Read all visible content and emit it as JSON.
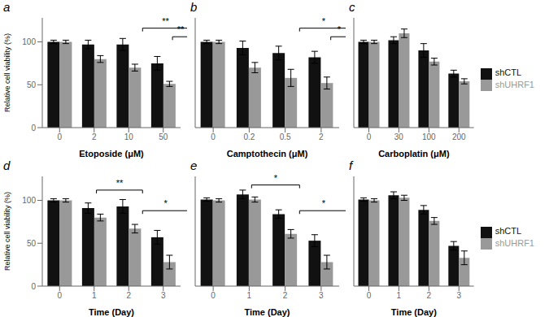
{
  "chart_data": [
    {
      "type": "bar",
      "title": "a",
      "xlabel": "Etoposide (μM)",
      "ylabel": "Relative cell viability (%)",
      "categories": [
        "0",
        "2",
        "10",
        "50"
      ],
      "series": [
        {
          "name": "shCTL",
          "color": "#111111",
          "values": [
            100,
            97,
            97,
            75
          ],
          "errors": [
            2,
            5,
            7,
            8
          ]
        },
        {
          "name": "shUHRF1",
          "color": "#999999",
          "values": [
            100,
            80,
            70,
            51
          ],
          "errors": [
            2,
            4,
            4,
            3
          ]
        }
      ],
      "ylim": [
        0,
        128
      ],
      "yticks": [
        0,
        50,
        100
      ],
      "grid": false,
      "annotations": [
        {
          "text": "**",
          "y": 116,
          "from": {
            "category": "10",
            "series": "shUHRF1"
          },
          "to": {
            "category": "50",
            "series": "shUHRF1"
          }
        },
        {
          "text": "**",
          "y": 106,
          "from": {
            "category": "50",
            "series": "shCTL"
          },
          "to": {
            "category": "50",
            "series": "shUHRF1"
          }
        }
      ]
    },
    {
      "type": "bar",
      "title": "b",
      "xlabel": "Camptothecin (μM)",
      "categories": [
        "0",
        "0.2",
        "0.5",
        "2"
      ],
      "series": [
        {
          "name": "shCTL",
          "color": "#111111",
          "values": [
            100,
            93,
            87,
            82
          ],
          "errors": [
            2,
            8,
            8,
            7
          ]
        },
        {
          "name": "shUHRF1",
          "color": "#999999",
          "values": [
            100,
            70,
            58,
            52
          ],
          "errors": [
            2,
            6,
            10,
            7
          ]
        }
      ],
      "ylim": [
        0,
        128
      ],
      "yticks": [
        0,
        50,
        100
      ],
      "grid": false,
      "tick_labels": "x",
      "annotations": [
        {
          "text": "*",
          "y": 116,
          "from": {
            "category": "0.5",
            "series": "shUHRF1"
          },
          "to": {
            "category": "2",
            "series": "shUHRF1"
          }
        },
        {
          "text": "*",
          "y": 106,
          "from": {
            "category": "2",
            "series": "shCTL"
          },
          "to": {
            "category": "2",
            "series": "shUHRF1"
          }
        }
      ]
    },
    {
      "type": "bar",
      "title": "c",
      "xlabel": "Carboplatin (μM)",
      "categories": [
        "0",
        "30",
        "100",
        "200"
      ],
      "series": [
        {
          "name": "shCTL",
          "color": "#111111",
          "values": [
            100,
            102,
            90,
            63
          ],
          "errors": [
            2,
            4,
            8,
            4
          ]
        },
        {
          "name": "shUHRF1",
          "color": "#999999",
          "values": [
            100,
            110,
            77,
            54
          ],
          "errors": [
            2,
            5,
            4,
            3
          ]
        }
      ],
      "ylim": [
        0,
        128
      ],
      "yticks": [
        0,
        50,
        100
      ],
      "grid": false,
      "tick_labels": "x",
      "legend": "right"
    },
    {
      "type": "bar",
      "title": "d",
      "xlabel": "Time (Day)",
      "ylabel": "Relative cell viability (%)",
      "categories": [
        "0",
        "1",
        "2",
        "3"
      ],
      "series": [
        {
          "name": "shCTL",
          "color": "#111111",
          "values": [
            100,
            91,
            93,
            57
          ],
          "errors": [
            2,
            6,
            8,
            8
          ]
        },
        {
          "name": "shUHRF1",
          "color": "#999999",
          "values": [
            100,
            80,
            67,
            28
          ],
          "errors": [
            2,
            4,
            5,
            8
          ]
        }
      ],
      "ylim": [
        0,
        128
      ],
      "yticks": [
        0,
        50,
        100
      ],
      "grid": false,
      "annotations": [
        {
          "text": "**",
          "y": 112,
          "from": {
            "category": "1",
            "series": "shUHRF1"
          },
          "to": {
            "category": "2",
            "series": "shUHRF1"
          }
        },
        {
          "text": "*",
          "y": 88,
          "from": {
            "category": "2",
            "series": "shUHRF1"
          },
          "to": {
            "category": "3",
            "series": "shUHRF1"
          }
        }
      ]
    },
    {
      "type": "bar",
      "title": "e",
      "xlabel": "Time (Day)",
      "categories": [
        "0",
        "1",
        "2",
        "3"
      ],
      "series": [
        {
          "name": "shCTL",
          "color": "#111111",
          "values": [
            101,
            107,
            84,
            53
          ],
          "errors": [
            2,
            5,
            5,
            7
          ]
        },
        {
          "name": "shUHRF1",
          "color": "#999999",
          "values": [
            100,
            101,
            61,
            28
          ],
          "errors": [
            2,
            3,
            5,
            8
          ]
        }
      ],
      "ylim": [
        0,
        128
      ],
      "yticks": [
        0,
        50,
        100
      ],
      "grid": false,
      "tick_labels": "x",
      "annotations": [
        {
          "text": "*",
          "y": 118,
          "from": {
            "category": "1",
            "series": "shUHRF1"
          },
          "to": {
            "category": "2",
            "series": "shUHRF1"
          }
        },
        {
          "text": "*",
          "y": 88,
          "from": {
            "category": "2",
            "series": "shUHRF1"
          },
          "to": {
            "category": "3",
            "series": "shUHRF1"
          }
        }
      ]
    },
    {
      "type": "bar",
      "title": "f",
      "xlabel": "Time (Day)",
      "categories": [
        "0",
        "1",
        "2",
        "3"
      ],
      "series": [
        {
          "name": "shCTL",
          "color": "#111111",
          "values": [
            101,
            106,
            89,
            47
          ],
          "errors": [
            2,
            4,
            5,
            5
          ]
        },
        {
          "name": "shUHRF1",
          "color": "#999999",
          "values": [
            100,
            103,
            76,
            33
          ],
          "errors": [
            2,
            3,
            4,
            8
          ]
        }
      ],
      "ylim": [
        0,
        128
      ],
      "yticks": [
        0,
        50,
        100
      ],
      "grid": false,
      "tick_labels": "x",
      "legend": "right"
    }
  ]
}
